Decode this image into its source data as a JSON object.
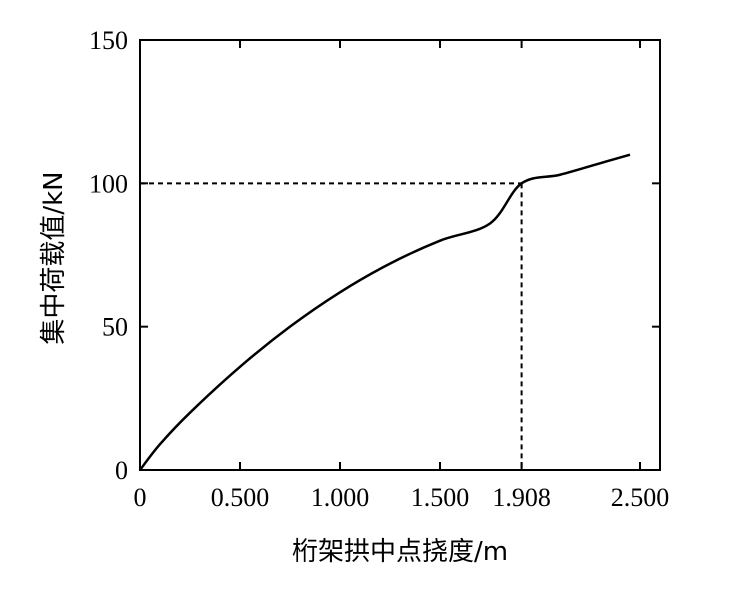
{
  "chart_data": {
    "type": "line",
    "title": "",
    "xlabel": "桁架拱中点挠度/m",
    "ylabel": "集中荷载值/kN",
    "xlim": [
      0,
      2.6
    ],
    "ylim": [
      0,
      150
    ],
    "grid": false,
    "legend": "none",
    "x_ticks": [
      {
        "value": 0,
        "label": "0"
      },
      {
        "value": 0.5,
        "label": "0.500"
      },
      {
        "value": 1.0,
        "label": "1.000"
      },
      {
        "value": 1.5,
        "label": "1.500"
      },
      {
        "value": 1.908,
        "label": "1.908"
      },
      {
        "value": 2.5,
        "label": "2.500"
      }
    ],
    "y_ticks": [
      {
        "value": 0,
        "label": "0"
      },
      {
        "value": 50,
        "label": "50"
      },
      {
        "value": 100,
        "label": "100"
      },
      {
        "value": 150,
        "label": "150"
      }
    ],
    "series": [
      {
        "color": "#000000",
        "x": [
          0,
          0.1,
          0.25,
          0.5,
          0.75,
          1.0,
          1.25,
          1.5,
          1.75,
          1.908,
          2.1,
          2.3,
          2.45
        ],
        "y": [
          0,
          9,
          20,
          36,
          50,
          62,
          72,
          80,
          86,
          100,
          103,
          107,
          110
        ]
      }
    ],
    "reference_point": {
      "x": 1.908,
      "y": 100,
      "style": "dashed"
    }
  }
}
